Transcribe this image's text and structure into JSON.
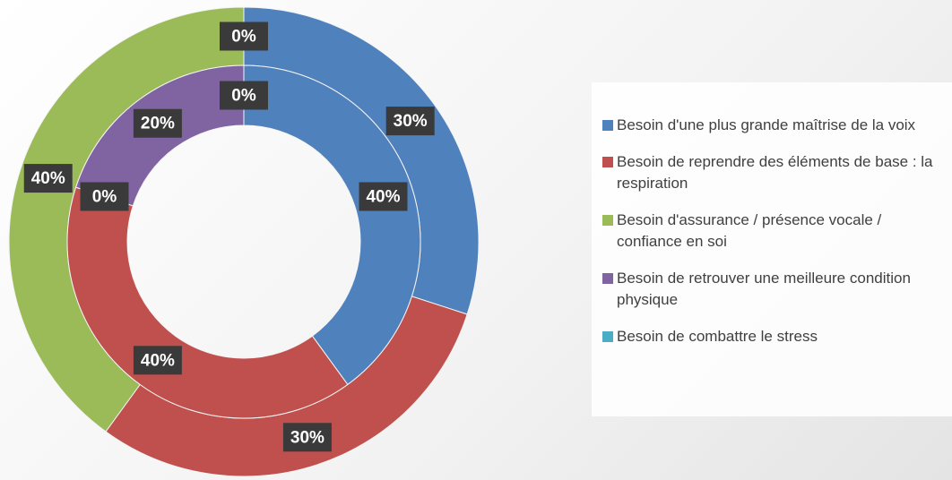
{
  "chart_data": {
    "type": "doughnut",
    "categories": [
      "Besoin d'une plus grande maîtrise de la voix",
      "Besoin de reprendre des éléments de base : la respiration",
      "Besoin d'assurance / présence vocale / confiance en soi",
      "Besoin de retrouver une meilleure condition physique",
      "Besoin de combattre le stress"
    ],
    "colors": [
      "#4f81bd",
      "#c0504d",
      "#9bbb59",
      "#8064a2",
      "#4bacc6"
    ],
    "series": [
      {
        "values": [
          30,
          30,
          40,
          0,
          0
        ],
        "value_labels": [
          "30%",
          "30%",
          "40%",
          "0%",
          "0%"
        ]
      },
      {
        "values": [
          40,
          40,
          0,
          20,
          0
        ],
        "value_labels": [
          "40%",
          "40%",
          "0%",
          "20%",
          "0%"
        ]
      }
    ]
  }
}
